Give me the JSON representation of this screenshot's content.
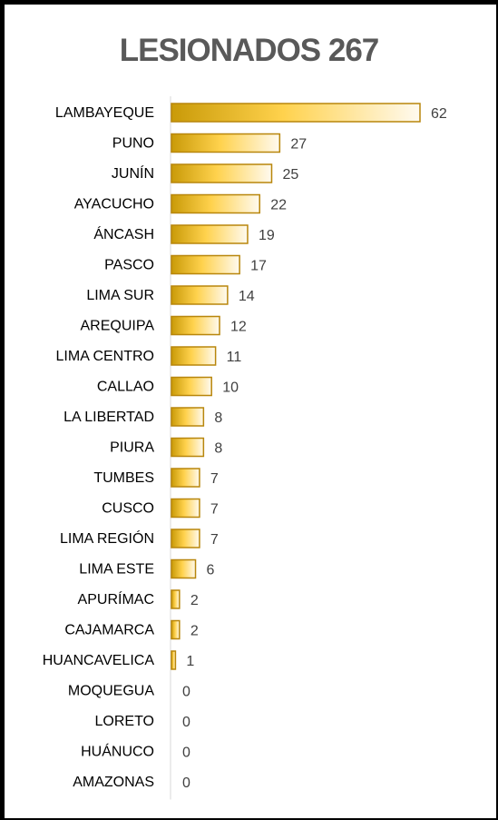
{
  "colors": {
    "bar_dark": "#c99a08",
    "bar_mid": "#ffd24d",
    "bar_light": "#fffaf0",
    "bar_border": "#b8860b",
    "axis": "#d9d9d9",
    "title": "#595959"
  },
  "chart_data": {
    "type": "bar",
    "orientation": "horizontal",
    "title": "LESIONADOS 267",
    "xlabel": "",
    "ylabel": "",
    "grid": false,
    "legend": "none",
    "xlim": [
      0,
      62
    ],
    "categories": [
      "LAMBAYEQUE",
      "PUNO",
      "JUNÍN",
      "AYACUCHO",
      "ÁNCASH",
      "PASCO",
      "LIMA SUR",
      "AREQUIPA",
      "LIMA CENTRO",
      "CALLAO",
      "LA LIBERTAD",
      "PIURA",
      "TUMBES",
      "CUSCO",
      "LIMA REGIÓN",
      "LIMA ESTE",
      "APURÍMAC",
      "CAJAMARCA",
      "HUANCAVELICA",
      "MOQUEGUA",
      "LORETO",
      "HUÁNUCO",
      "AMAZONAS"
    ],
    "values": [
      62,
      27,
      25,
      22,
      19,
      17,
      14,
      12,
      11,
      10,
      8,
      8,
      7,
      7,
      7,
      6,
      2,
      2,
      1,
      0,
      0,
      0,
      0
    ]
  }
}
